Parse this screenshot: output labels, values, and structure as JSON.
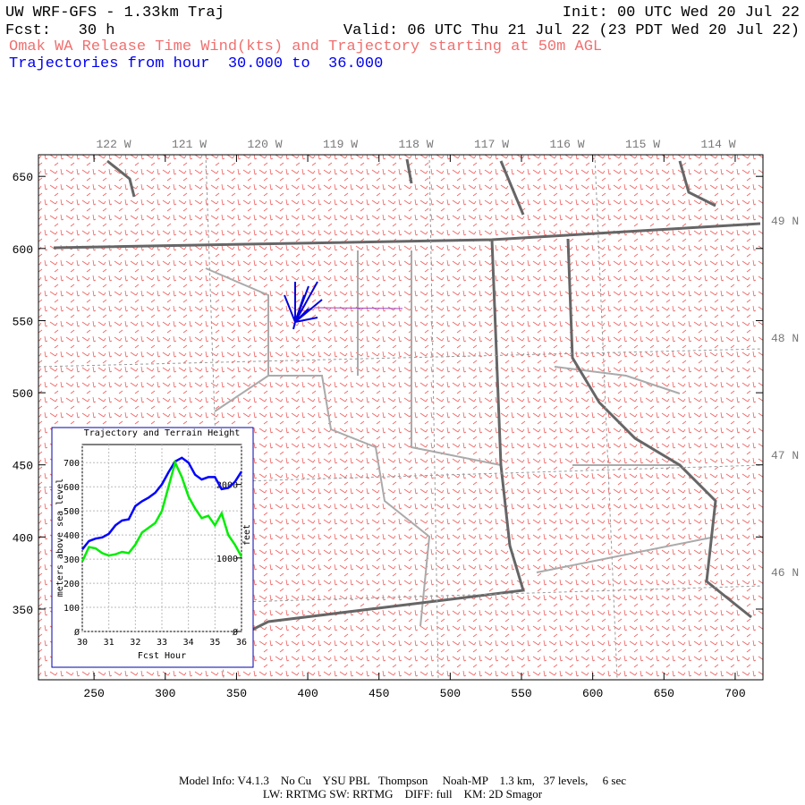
{
  "header": {
    "title": "UW WRF-GFS - 1.33km Traj",
    "init": "Init: 00 UTC Wed 20 Jul 22",
    "fcst": "Fcst:   30 h",
    "valid": "Valid: 06 UTC Thu 21 Jul 22 (23 PDT Wed 20 Jul 22)",
    "subtitle": "Omak WA Release Time Wind(kts) and Trajectory starting at 50m AGL",
    "trajectories": "Trajectories from hour  30.000 to  36.000"
  },
  "chart_data": [
    {
      "type": "map",
      "xlim": [
        211,
        719.5
      ],
      "ylim": [
        301,
        665
      ],
      "xticks": [
        250,
        300,
        350,
        400,
        450,
        500,
        550,
        600,
        650,
        700
      ],
      "yticks": [
        350,
        400,
        450,
        500,
        550,
        600,
        650
      ],
      "lon_labels": [
        "122 W",
        "121 W",
        "120 W",
        "119 W",
        "118 W",
        "117 W",
        "116 W",
        "115 W",
        "114 W"
      ],
      "lat_labels": [
        "49 N",
        "48 N",
        "47 N",
        "46 N"
      ]
    },
    {
      "type": "line",
      "title": "Trajectory and Terrain Height",
      "x_label": "Fcst Hour",
      "y_label": "meters above sea level",
      "y2_label": "feet",
      "x": [
        30,
        30.25,
        30.5,
        30.75,
        31,
        31.25,
        31.5,
        31.75,
        32,
        32.25,
        32.5,
        32.75,
        33,
        33.25,
        33.5,
        33.75,
        34,
        34.25,
        34.5,
        34.75,
        35,
        35.25,
        35.5,
        35.75,
        36
      ],
      "series": [
        {
          "color": "#0000ff",
          "values": [
            340,
            375,
            385,
            390,
            405,
            440,
            460,
            465,
            520,
            540,
            555,
            575,
            610,
            660,
            705,
            720,
            700,
            650,
            630,
            640,
            640,
            590,
            595,
            620,
            663
          ]
        },
        {
          "color": "#00ee00",
          "values": [
            290,
            350,
            345,
            325,
            315,
            320,
            330,
            325,
            360,
            410,
            430,
            450,
            500,
            600,
            700,
            640,
            560,
            510,
            470,
            480,
            440,
            490,
            400,
            360,
            310
          ]
        }
      ],
      "xlim": [
        30,
        36
      ],
      "ylim": [
        0,
        775
      ],
      "y2lim": [
        0,
        2543
      ],
      "xticks": [
        30,
        31,
        32,
        33,
        34,
        35,
        36
      ],
      "yticks": [
        {
          "value": 0,
          "label": "Ø"
        },
        100,
        200,
        300,
        400,
        500,
        600,
        700
      ],
      "y2ticks": [
        {
          "value": 0,
          "label": "Ø"
        },
        1000,
        2000
      ],
      "grid": true
    }
  ],
  "footer": {
    "line1": "Model Info: V4.1.3    No Cu    YSU PBL   Thompson     Noah-MP    1.3 km,   37 levels,     6 sec",
    "line2": "LW: RRTMG SW: RRTMG    DIFF: full    KM: 2D Smagor"
  }
}
